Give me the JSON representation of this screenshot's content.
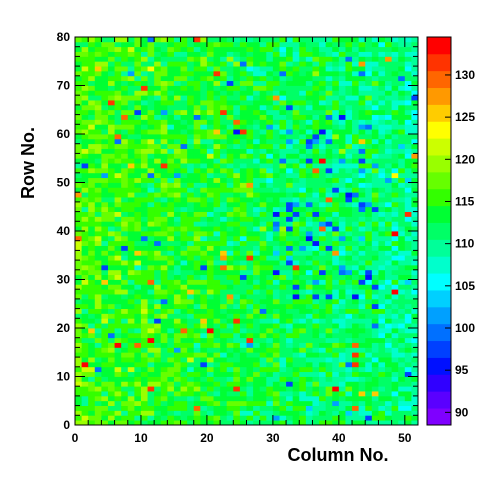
{
  "chart_data": {
    "type": "heatmap",
    "title": "",
    "xlabel": "Column No.",
    "ylabel": "Row No.",
    "xlim": [
      0,
      52
    ],
    "ylim": [
      0,
      80
    ],
    "x_major_ticks": [
      0,
      10,
      20,
      30,
      40,
      50
    ],
    "y_major_ticks": [
      0,
      10,
      20,
      30,
      40,
      50,
      60,
      70,
      80
    ],
    "n_columns": 52,
    "n_rows": 80,
    "colorbar": {
      "min": 88.5,
      "max": 134.5,
      "ticks": [
        90,
        95,
        100,
        105,
        110,
        115,
        120,
        125,
        130
      ],
      "palette": [
        "#7f00ff",
        "#5a00ff",
        "#3000ff",
        "#0010ff",
        "#0040ff",
        "#0070ff",
        "#00a0ff",
        "#00d0ff",
        "#00ffff",
        "#00ffcc",
        "#00ff99",
        "#00ff66",
        "#00ff33",
        "#33ff00",
        "#66ff00",
        "#99ff00",
        "#ccff00",
        "#ffff00",
        "#ffcc00",
        "#ff9900",
        "#ff6600",
        "#ff3300",
        "#ff0000"
      ]
    },
    "value_summary": {
      "typical_range": [
        108,
        122
      ],
      "note": "values around 115 on the left half, around 110 on the right half with scattered low (blue) cells near columns 30-45 and rows 30-60; a few high (orange/red) outliers"
    },
    "grid": false,
    "legend": "colorbar-right"
  }
}
